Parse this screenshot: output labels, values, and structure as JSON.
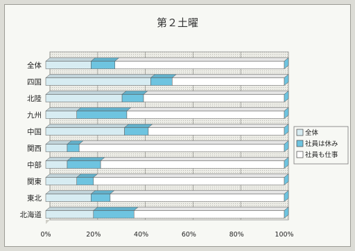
{
  "chart_data": {
    "type": "bar",
    "orientation": "horizontal",
    "stacked": "percent",
    "title": "第２土曜",
    "categories": [
      "全体",
      "四国",
      "北陸",
      "九州",
      "中国",
      "関西",
      "中部",
      "関東",
      "東北",
      "北海道"
    ],
    "series": [
      {
        "name": "全体",
        "color": "#d7ecf2",
        "values": [
          19,
          44,
          32,
          13,
          33,
          9,
          9,
          13,
          19,
          20
        ]
      },
      {
        "name": "社員は休み",
        "color": "#6ec4e0",
        "values": [
          10,
          9,
          9,
          21,
          10,
          5,
          14,
          7,
          8,
          17
        ]
      },
      {
        "name": "社員も仕事",
        "color": "#ffffff",
        "values": [
          71,
          47,
          59,
          66,
          57,
          86,
          77,
          80,
          73,
          63
        ]
      }
    ],
    "xlim": [
      0,
      100
    ],
    "xticks": [
      "0%",
      "20%",
      "40%",
      "60%",
      "80%",
      "100%"
    ],
    "grid": true,
    "legend": "right"
  }
}
